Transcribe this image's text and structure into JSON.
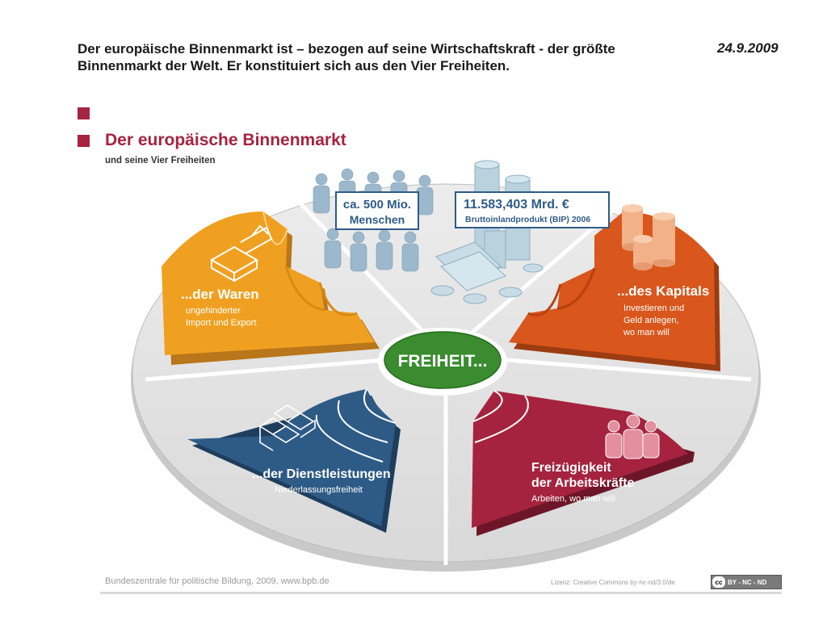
{
  "headline": {
    "line1": "Der europäische Binnenmarkt ist – bezogen auf seine Wirtschaftskraft - der größte",
    "line2": "Binnenmarkt der Welt. Er konstituiert sich aus den Vier Freiheiten."
  },
  "date": "24.9.2009",
  "graphic": {
    "title": "Der europäische Binnenmarkt",
    "subtitle": "und seine Vier Freiheiten",
    "center": "FREIHEIT...",
    "population_box": {
      "line1": "ca. 500 Mio.",
      "line2": "Menschen"
    },
    "gdp_box": {
      "value": "11.583,403 Mrd. €",
      "caption": "Bruttoinlandprodukt (BIP) 2006"
    },
    "sectors": {
      "goods": {
        "title": "...der Waren",
        "line1": "ungehinderter",
        "line2": "Import und Export",
        "color": "#f0a020"
      },
      "capital": {
        "title": "...des Kapitals",
        "line1": "Investieren und",
        "line2": "Geld anlegen,",
        "line3": "wo man will",
        "color": "#d9561c"
      },
      "services": {
        "title": "...der Dienstleistungen",
        "line1": "Niederlassungsfreiheit",
        "color": "#2e5b86"
      },
      "labour": {
        "title1": "Freizügigkeit",
        "title2": "der Arbeitskräfte",
        "line1": "Arbeiten, wo man will",
        "color": "#a5233e"
      }
    },
    "center_color": "#3a8c2f"
  },
  "footer": {
    "source": "Bundeszentrale für politische Bildung, 2009, www.bpb.de",
    "license": "Lizenz: Creative Commons by-nc-nd/3.0/de",
    "cc_badge": "BY - NC - ND",
    "cc_icon": "cc"
  }
}
